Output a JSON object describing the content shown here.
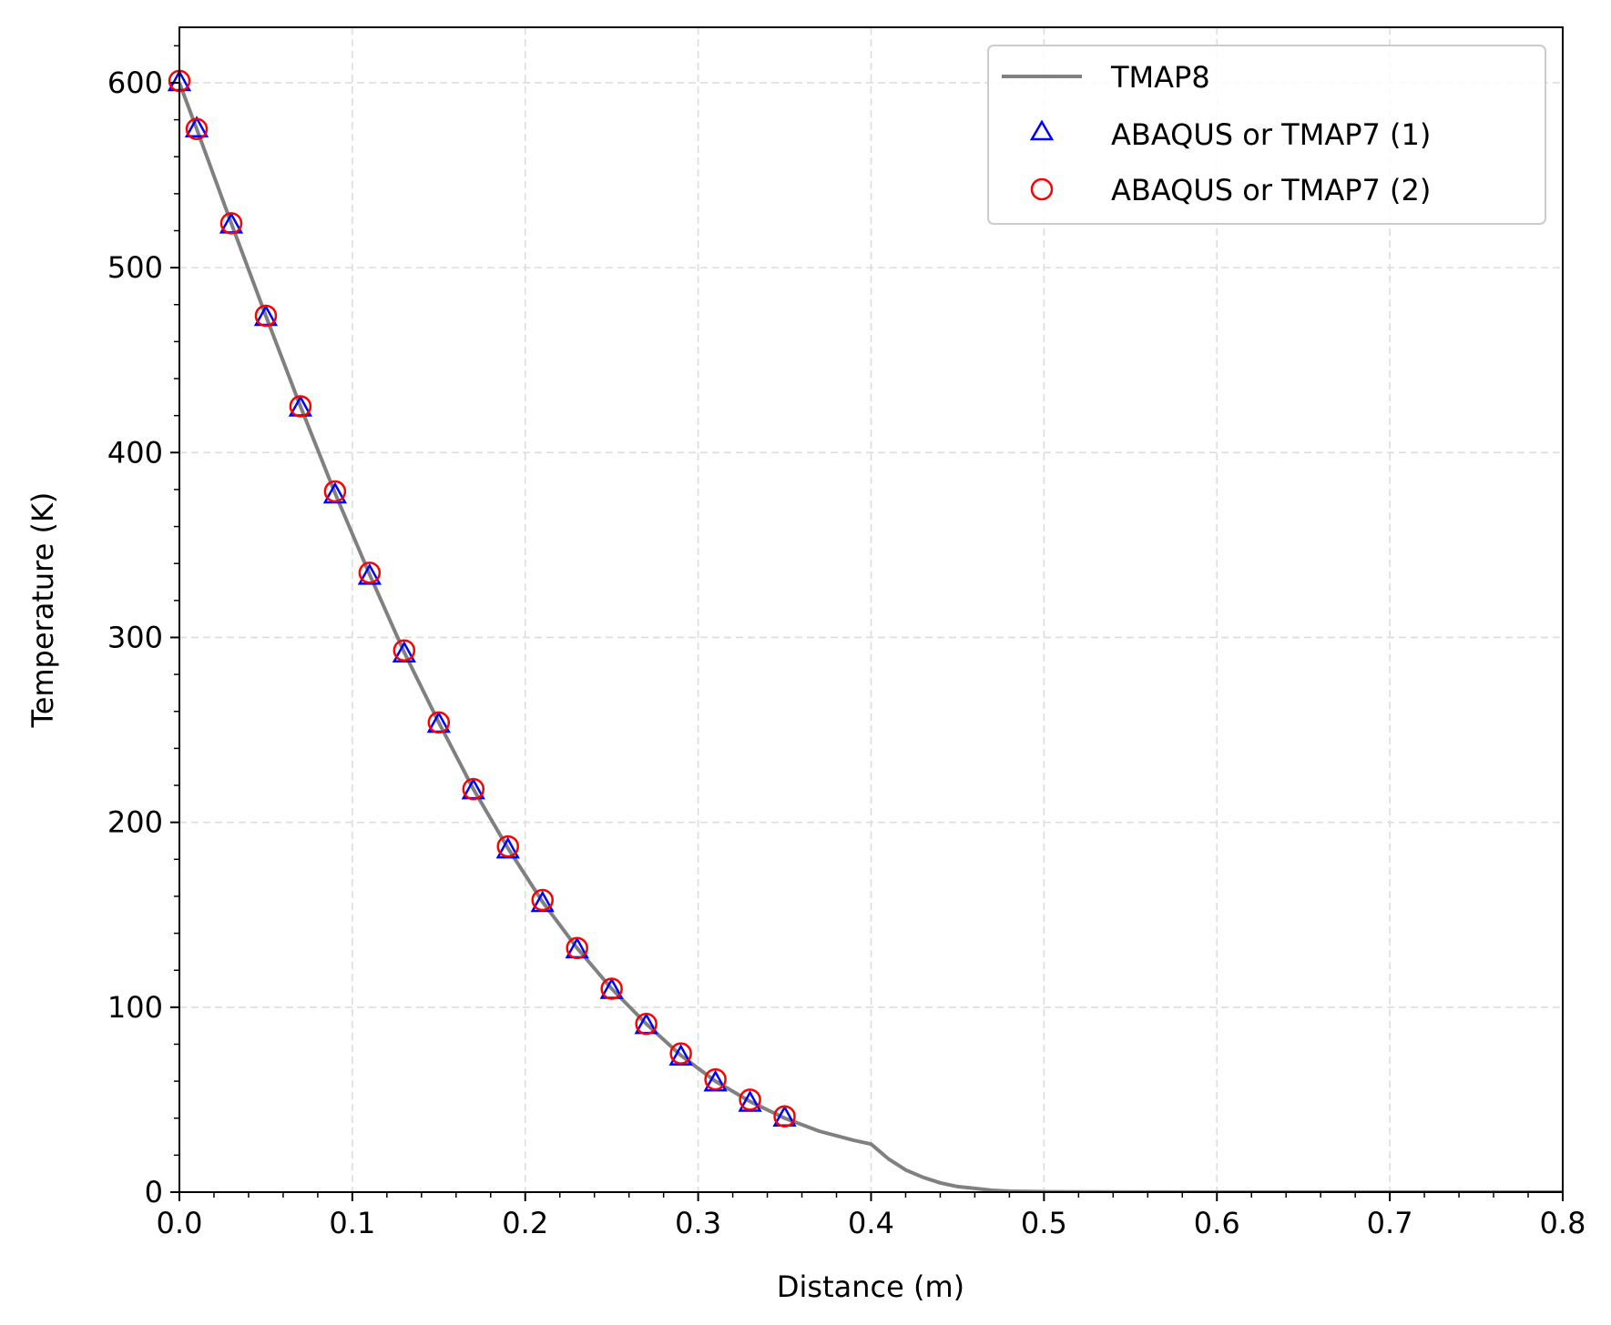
{
  "chart_data": {
    "type": "line",
    "title": "",
    "xlabel": "Distance (m)",
    "ylabel": "Temperature (K)",
    "xlim": [
      0,
      0.8
    ],
    "ylim": [
      0,
      630
    ],
    "xticks": [
      "0.0",
      "0.1",
      "0.2",
      "0.3",
      "0.4",
      "0.5",
      "0.6",
      "0.7",
      "0.8"
    ],
    "yticks": [
      "0",
      "100",
      "200",
      "300",
      "400",
      "500",
      "600"
    ],
    "grid": true,
    "legend_position": "top-right",
    "series": [
      {
        "name": "TMAP8",
        "kind": "line",
        "color": "#808080",
        "x": [
          0,
          0.01,
          0.03,
          0.05,
          0.07,
          0.09,
          0.11,
          0.13,
          0.15,
          0.17,
          0.19,
          0.21,
          0.23,
          0.25,
          0.27,
          0.29,
          0.31,
          0.33,
          0.35,
          0.37,
          0.39,
          0.4,
          0.41,
          0.42,
          0.43,
          0.44,
          0.45,
          0.46,
          0.47,
          0.48,
          0.5,
          0.55,
          0.6,
          0.7,
          0.8
        ],
        "y": [
          600,
          575,
          524,
          474,
          425,
          378,
          334,
          292,
          254,
          218,
          186,
          157,
          132,
          110,
          91,
          74,
          60,
          49,
          40,
          33,
          28,
          26,
          18,
          12,
          8,
          5,
          3,
          2,
          1,
          0.5,
          0.2,
          0.05,
          0,
          0,
          0
        ]
      },
      {
        "name": "ABAQUS or TMAP7 (1)",
        "kind": "triangle",
        "color": "#0000ff",
        "x": [
          0,
          0.01,
          0.03,
          0.05,
          0.07,
          0.09,
          0.11,
          0.13,
          0.15,
          0.17,
          0.19,
          0.21,
          0.23,
          0.25,
          0.27,
          0.29,
          0.31,
          0.33,
          0.35
        ],
        "y": [
          600,
          575,
          523,
          473,
          424,
          377,
          333,
          291,
          253,
          217,
          185,
          156,
          131,
          109,
          90,
          73,
          59,
          48,
          40
        ]
      },
      {
        "name": "ABAQUS or TMAP7 (2)",
        "kind": "circle",
        "color": "#ff0000",
        "x": [
          0,
          0.01,
          0.03,
          0.05,
          0.07,
          0.09,
          0.11,
          0.13,
          0.15,
          0.17,
          0.19,
          0.21,
          0.23,
          0.25,
          0.27,
          0.29,
          0.31,
          0.33,
          0.35
        ],
        "y": [
          601,
          575,
          524,
          474,
          425,
          379,
          335,
          293,
          254,
          218,
          187,
          158,
          132,
          110,
          91,
          75,
          61,
          50,
          41
        ]
      }
    ]
  }
}
